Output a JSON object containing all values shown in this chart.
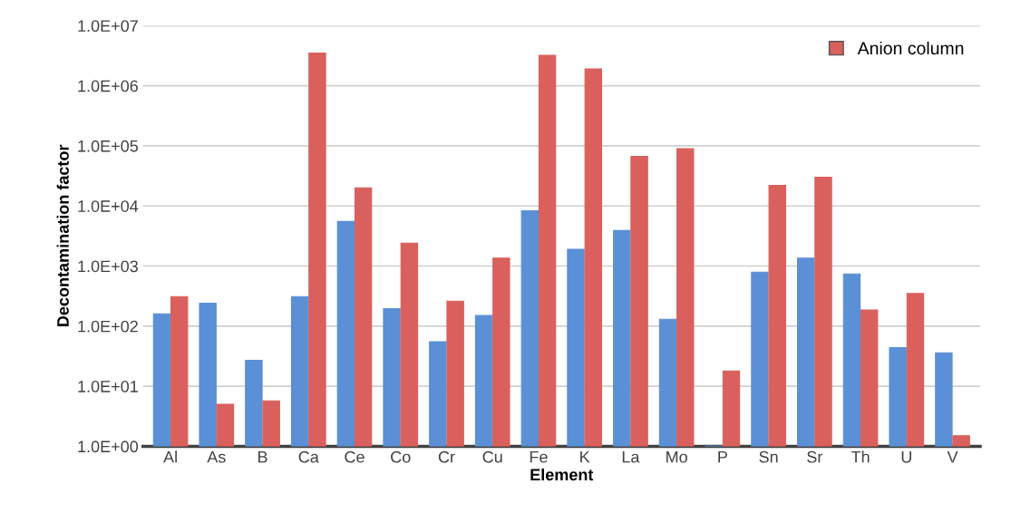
{
  "chart_data": {
    "type": "bar",
    "xlabel": "Element",
    "ylabel": "Decontamination factor",
    "categories": [
      "Al",
      "As",
      "B",
      "Ca",
      "Ce",
      "Co",
      "Cr",
      "Cu",
      "Fe",
      "K",
      "La",
      "Mo",
      "P",
      "Sn",
      "Sr",
      "Th",
      "U",
      "V"
    ],
    "series": [
      {
        "color": "#5b8fd6",
        "values": [
          160,
          240,
          27,
          310,
          5500,
          195,
          55,
          150,
          8300,
          1900,
          3900,
          130,
          null,
          790,
          1350,
          740,
          44,
          36
        ]
      },
      {
        "name": "Anion column",
        "color": "#d9605c",
        "values": [
          310,
          5,
          5.7,
          3500000,
          20000,
          2400,
          260,
          1350,
          3200000,
          1900000,
          67000,
          90000,
          18,
          22000,
          30000,
          185,
          350,
          1.5
        ]
      }
    ],
    "log": true,
    "ylim": [
      1,
      10000000
    ],
    "yticks": [
      {
        "value": 1,
        "label": "1.0E+00"
      },
      {
        "value": 10,
        "label": "1.0E+01"
      },
      {
        "value": 100,
        "label": "1.0E+02"
      },
      {
        "value": 1000,
        "label": "1.0E+03"
      },
      {
        "value": 10000,
        "label": "1.0E+04"
      },
      {
        "value": 100000,
        "label": "1.0E+05"
      },
      {
        "value": 1000000,
        "label": "1.0E+06"
      },
      {
        "value": 10000000,
        "label": "1.0E+07"
      }
    ],
    "grid": "y",
    "legend": "top right"
  }
}
